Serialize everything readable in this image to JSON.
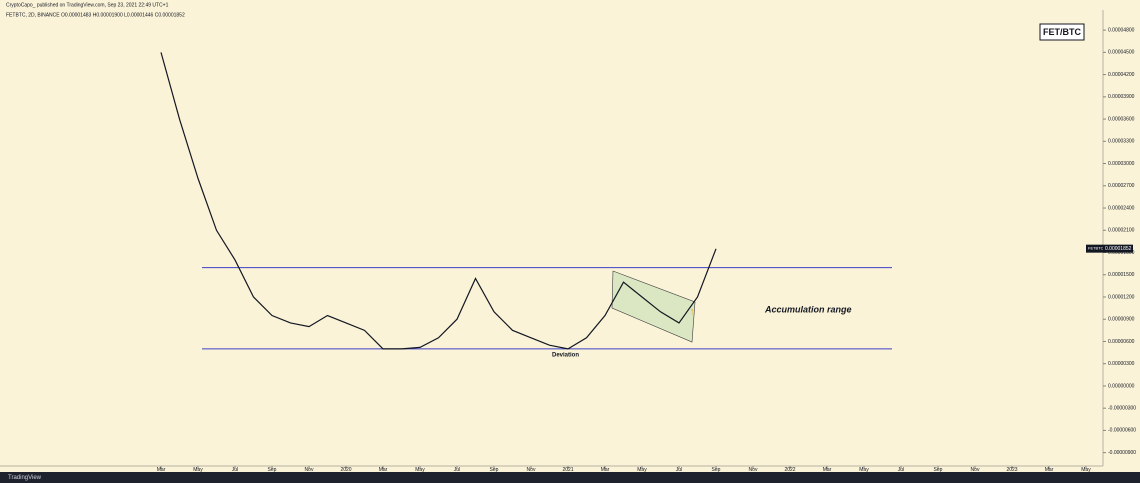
{
  "chart_data": {
    "type": "line",
    "header": "CryptoCapo_ published on TradingView.com, Sep 23, 2021 22:49 UTC+1",
    "subtitle": "FETBTC, 2D, BINANCE  O0.00001483  H0.00001900  L0.00001446  C0.00001852",
    "title": "FET/BTC",
    "symbol": "FETBTC",
    "last_price": {
      "value": 1.852e-05,
      "label": "0.00001852"
    },
    "x": [
      "2019-03",
      "2019-04",
      "2019-05",
      "2019-06",
      "2019-07",
      "2019-08",
      "2019-09",
      "2019-10",
      "2019-11",
      "2019-12",
      "2020-01",
      "2020-02",
      "2020-03",
      "2020-04",
      "2020-05",
      "2020-06",
      "2020-07",
      "2020-08",
      "2020-09",
      "2020-10",
      "2020-11",
      "2020-12",
      "2021-01",
      "2021-02",
      "2021-03",
      "2021-04",
      "2021-05",
      "2021-06",
      "2021-07",
      "2021-08",
      "2021-09"
    ],
    "series": [
      {
        "name": "FETBTC",
        "color": "#131722",
        "values": [
          4.5e-05,
          3.6e-05,
          2.8e-05,
          2.1e-05,
          1.7e-05,
          1.2e-05,
          9.5e-06,
          8.5e-06,
          8e-06,
          9.5e-06,
          8.5e-06,
          7.5e-06,
          5e-06,
          5e-06,
          5.2e-06,
          6.5e-06,
          9e-06,
          1.45e-05,
          1e-05,
          7.5e-06,
          6.5e-06,
          5.5e-06,
          5e-06,
          6.5e-06,
          9.5e-06,
          1.4e-05,
          1.2e-05,
          1e-05,
          8.5e-06,
          1.2e-05,
          1.85e-05
        ]
      }
    ],
    "xtick_labels": [
      "Mar",
      "May",
      "Jul",
      "Sep",
      "Nov",
      "2020",
      "Mar",
      "May",
      "Jul",
      "Sep",
      "Nov",
      "2021",
      "Mar",
      "May",
      "Jul",
      "Sep",
      "Nov",
      "2022",
      "Mar",
      "May",
      "Jul",
      "Sep",
      "Nov",
      "2023",
      "Mar",
      "May"
    ],
    "ylim": [
      -1.08e-05,
      4.95e-05
    ],
    "yticks": [
      {
        "value": -9e-06,
        "label": "-0.00000900"
      },
      {
        "value": -6e-06,
        "label": "-0.00000600"
      },
      {
        "value": -3e-06,
        "label": "-0.00000300"
      },
      {
        "value": 0,
        "label": "0.00000000"
      },
      {
        "value": 3e-06,
        "label": "0.00000300"
      },
      {
        "value": 6e-06,
        "label": "0.00000600"
      },
      {
        "value": 9e-06,
        "label": "0.00000900"
      },
      {
        "value": 1.2e-05,
        "label": "0.00001200"
      },
      {
        "value": 1.5e-05,
        "label": "0.00001500"
      },
      {
        "value": 1.8e-05,
        "label": "0.00001800"
      },
      {
        "value": 2.1e-05,
        "label": "0.00002100"
      },
      {
        "value": 2.4e-05,
        "label": "0.00002400"
      },
      {
        "value": 2.7e-05,
        "label": "0.00002700"
      },
      {
        "value": 3e-05,
        "label": "0.00003000"
      },
      {
        "value": 3.3e-05,
        "label": "0.00003300"
      },
      {
        "value": 3.6e-05,
        "label": "0.00003600"
      },
      {
        "value": 3.9e-05,
        "label": "0.00003900"
      },
      {
        "value": 4.2e-05,
        "label": "0.00004200"
      },
      {
        "value": 4.5e-05,
        "label": "0.00004500"
      },
      {
        "value": 4.8e-05,
        "label": "0.00004800"
      }
    ],
    "levels": [
      1.596e-05,
      5e-06
    ],
    "level_color": "#3f3fc8",
    "annotations": [
      "Accumulation range",
      "Deviation"
    ],
    "footer": "TradingView"
  }
}
